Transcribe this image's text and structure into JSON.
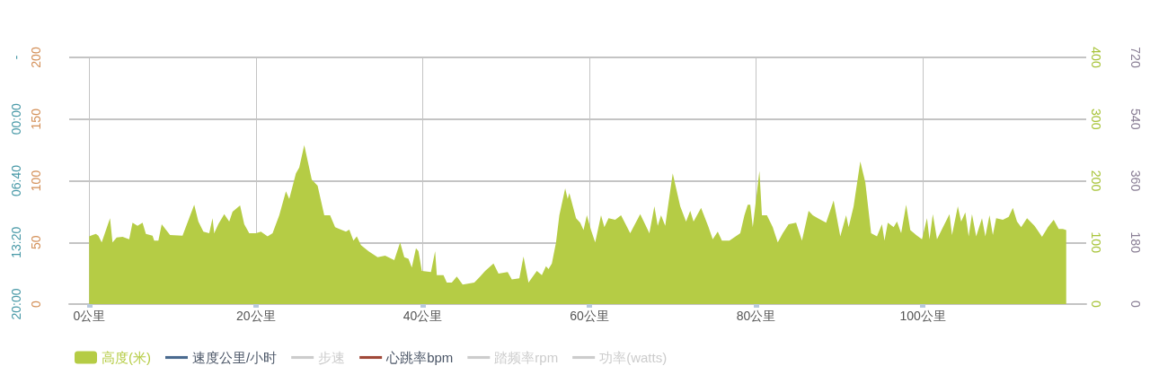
{
  "chart_data": {
    "type": "area",
    "x": [
      0,
      0.4,
      0.8,
      1.1,
      1.5,
      2.5,
      2.8,
      3.3,
      4.0,
      4.8,
      5.2,
      5.8,
      6.4,
      6.8,
      7.6,
      7.8,
      8.3,
      8.7,
      9.7,
      11.2,
      12.6,
      13.1,
      13.7,
      14.4,
      14.8,
      15.0,
      15.5,
      16.2,
      16.8,
      17.2,
      18.1,
      18.6,
      19.2,
      20,
      20.6,
      21.4,
      22.0,
      22.8,
      23.6,
      24.0,
      24.8,
      25.2,
      25.8,
      26.7,
      27.4,
      28.2,
      28.9,
      29.5,
      30.8,
      31.2,
      31.7,
      32.1,
      32.6,
      33.5,
      34.6,
      35.5,
      36.6,
      37.3,
      37.8,
      38.3,
      38.7,
      39.2,
      39.5,
      39.9,
      41.0,
      41.5,
      41.7,
      42.5,
      42.9,
      43.5,
      44.1,
      44.8,
      46.2,
      46.9,
      47.5,
      48.5,
      49.1,
      50.2,
      50.7,
      51.6,
      52.1,
      52.7,
      53.7,
      54.3,
      54.8,
      55.1,
      55.5,
      56.0,
      56.4,
      57.1,
      57.4,
      57.6,
      58.4,
      58.9,
      59.3,
      59.7,
      60.2,
      60.7,
      61.4,
      61.8,
      62.3,
      63.1,
      63.8,
      64.9,
      66.1,
      67.2,
      67.8,
      68.2,
      68.6,
      69.1,
      70.0,
      70.9,
      71.6,
      72.1,
      72.5,
      73.4,
      74.3,
      74.8,
      75.4,
      75.9,
      76.8,
      78.1,
      78.6,
      79.0,
      79.3,
      79.6,
      80.4,
      80.7,
      81.3,
      82.0,
      82.6,
      83.2,
      83.9,
      84.8,
      85.5,
      86.3,
      86.8,
      87.4,
      88.4,
      89.3,
      90.1,
      90.8,
      91.1,
      91.7,
      92.5,
      93.1,
      93.8,
      94.5,
      95.1,
      95.4,
      95.8,
      96.5,
      96.9,
      97.4,
      98.0,
      98.5,
      99.2,
      99.9,
      100.5,
      100.8,
      101.2,
      101.7,
      103.2,
      103.5,
      104.2,
      104.6,
      105.1,
      105.5,
      105.9,
      106.4,
      107.1,
      107.5,
      108.0,
      108.4,
      108.8,
      109.6,
      110.3,
      110.8,
      111.3,
      111.8,
      112.5,
      113.4,
      114.3,
      115.0,
      115.7,
      116.3,
      116.8,
      117.2
    ],
    "series": [
      {
        "name": "高度(米)",
        "color": "#b5cc45",
        "values": [
          55,
          56,
          57,
          55.5,
          50,
          69.6,
          50,
          54,
          54.5,
          52.6,
          66,
          63.5,
          66,
          57,
          55.5,
          51.4,
          51.4,
          64.7,
          56,
          55.5,
          80.5,
          67,
          58.7,
          57.5,
          69.6,
          57.5,
          65,
          73,
          67,
          75,
          80,
          64.7,
          57.5,
          57.5,
          58.7,
          55,
          57.5,
          72,
          91.4,
          85.3,
          106,
          110.8,
          129,
          101,
          96,
          72,
          72,
          62.3,
          58.7,
          60.4,
          51.4,
          55,
          47.8,
          43,
          38,
          39.3,
          35.6,
          50,
          38,
          36.8,
          29.6,
          45.3,
          43,
          27,
          26,
          43,
          23.5,
          23.5,
          17.5,
          17.5,
          22.3,
          15.8,
          17.5,
          22.3,
          27,
          33,
          24.7,
          26,
          20,
          21,
          38.5,
          17.5,
          27,
          23.5,
          30.8,
          28.4,
          33,
          50,
          72,
          93.8,
          85.3,
          90,
          69.6,
          66,
          60,
          72,
          60,
          50,
          72,
          62.3,
          69.6,
          68.4,
          72,
          57.5,
          73,
          57.5,
          79.3,
          63.5,
          72,
          63.5,
          106,
          79.3,
          67,
          75.6,
          67,
          78,
          62.3,
          52.6,
          58.7,
          51.4,
          51.4,
          57.5,
          72,
          80.5,
          80.5,
          62.3,
          108,
          72,
          72,
          62.3,
          50,
          57.5,
          64.7,
          66,
          51.4,
          75.6,
          72,
          69.6,
          66,
          84,
          55,
          72,
          62.3,
          79.3,
          115.6,
          98.7,
          57.5,
          55,
          64.7,
          51.4,
          66,
          62.3,
          67,
          57.5,
          80.5,
          60,
          56,
          52.6,
          69.6,
          52.6,
          73,
          52.6,
          73,
          56,
          79.3,
          67,
          74.4,
          55,
          73,
          55,
          69.6,
          55,
          72,
          56,
          69.6,
          68.4,
          70.8,
          78,
          67,
          62.3,
          69.6,
          63.5,
          54.5,
          62.3,
          68.4,
          61,
          61,
          60
        ]
      },
      {
        "name": "速度公里/小时",
        "type": "line",
        "color": "#4a6a8f",
        "values": [
          null,
          null,
          null,
          null,
          null,
          null,
          null,
          null,
          null,
          null,
          null,
          null,
          null,
          null,
          null,
          null,
          null,
          null,
          null,
          null,
          null,
          null,
          null,
          null,
          null,
          null,
          null,
          null,
          null,
          null,
          null,
          null,
          null,
          null,
          null,
          null,
          null,
          null,
          null,
          null,
          null,
          null,
          null,
          null,
          null,
          null,
          null,
          null,
          null,
          null,
          null,
          null,
          null,
          null,
          null,
          null,
          null,
          null,
          null,
          null,
          null,
          null,
          null,
          null,
          null,
          null,
          null,
          null,
          null,
          null,
          null,
          null,
          null,
          null,
          null,
          null,
          null,
          null,
          null,
          null,
          null,
          null,
          null,
          null,
          null,
          null,
          null,
          null,
          null,
          null,
          null,
          null,
          null,
          null,
          null,
          null,
          null,
          null,
          null,
          null,
          null,
          null,
          null,
          null,
          null,
          null,
          null,
          null,
          null,
          null,
          null,
          null,
          null,
          null,
          null,
          null,
          null,
          null,
          null,
          null,
          null,
          null,
          null,
          null,
          null,
          null,
          null,
          null,
          null,
          null,
          null,
          null,
          null,
          null,
          null,
          null,
          null,
          null,
          null,
          null,
          null,
          null,
          null,
          null,
          null,
          null,
          null,
          null,
          null,
          null,
          null,
          null,
          null,
          null,
          null,
          null,
          null,
          null,
          null,
          null,
          null,
          null,
          null,
          null,
          null,
          null,
          null,
          null,
          null,
          null,
          null,
          null,
          null,
          null,
          null,
          null,
          null,
          null,
          null,
          null,
          null,
          null,
          null,
          null,
          null,
          null,
          null,
          null
        ]
      },
      {
        "name": "步速",
        "type": "line",
        "color": "#cccccc",
        "values": [
          null,
          null,
          null,
          null,
          null,
          null,
          null,
          null,
          null,
          null,
          null,
          null,
          null,
          null,
          null,
          null,
          null,
          null,
          null,
          null,
          null,
          null,
          null,
          null,
          null,
          null,
          null,
          null,
          null,
          null,
          null,
          null,
          null,
          null,
          null,
          null,
          null,
          null,
          null,
          null,
          null,
          null,
          null,
          null,
          null,
          null,
          null,
          null,
          null,
          null,
          null,
          null,
          null,
          null,
          null,
          null,
          null,
          null,
          null,
          null,
          null,
          null,
          null,
          null,
          null,
          null,
          null,
          null,
          null,
          null,
          null,
          null,
          null,
          null,
          null,
          null,
          null,
          null,
          null,
          null,
          null,
          null,
          null,
          null,
          null,
          null,
          null,
          null,
          null,
          null,
          null,
          null,
          null,
          null,
          null,
          null,
          null,
          null,
          null,
          null,
          null,
          null,
          null,
          null,
          null,
          null,
          null,
          null,
          null,
          null,
          null,
          null,
          null,
          null,
          null,
          null,
          null,
          null,
          null,
          null,
          null,
          null,
          null,
          null,
          null,
          null,
          null,
          null,
          null,
          null,
          null,
          null,
          null,
          null,
          null,
          null,
          null,
          null,
          null,
          null,
          null,
          null,
          null,
          null,
          null,
          null,
          null,
          null,
          null,
          null,
          null,
          null,
          null,
          null,
          null,
          null,
          null,
          null,
          null,
          null,
          null,
          null,
          null,
          null,
          null,
          null,
          null,
          null,
          null,
          null,
          null,
          null,
          null,
          null,
          null,
          null,
          null,
          null,
          null,
          null,
          null,
          null,
          null,
          null,
          null,
          null,
          null,
          null
        ]
      },
      {
        "name": "心跳率bpm",
        "type": "line",
        "color": "#a04838",
        "values": [
          null,
          null,
          null,
          null,
          null,
          null,
          null,
          null,
          null,
          null,
          null,
          null,
          null,
          null,
          null,
          null,
          null,
          null,
          null,
          null,
          null,
          null,
          null,
          null,
          null,
          null,
          null,
          null,
          null,
          null,
          null,
          null,
          null,
          null,
          null,
          null,
          null,
          null,
          null,
          null,
          null,
          null,
          null,
          null,
          null,
          null,
          null,
          null,
          null,
          null,
          null,
          null,
          null,
          null,
          null,
          null,
          null,
          null,
          null,
          null,
          null,
          null,
          null,
          null,
          null,
          null,
          null,
          null,
          null,
          null,
          null,
          null,
          null,
          null,
          null,
          null,
          null,
          null,
          null,
          null,
          null,
          null,
          null,
          null,
          null,
          null,
          null,
          null,
          null,
          null,
          null,
          null,
          null,
          null,
          null,
          null,
          null,
          null,
          null,
          null,
          null,
          null,
          null,
          null,
          null,
          null,
          null,
          null,
          null,
          null,
          null,
          null,
          null,
          null,
          null,
          null,
          null,
          null,
          null,
          null,
          null,
          null,
          null,
          null,
          null,
          null,
          null,
          null,
          null,
          null,
          null,
          null,
          null,
          null,
          null,
          null,
          null,
          null,
          null,
          null,
          null,
          null,
          null,
          null,
          null,
          null,
          null,
          null,
          null,
          null,
          null,
          null,
          null,
          null,
          null,
          null,
          null,
          null,
          null,
          null,
          null,
          null,
          null,
          null,
          null,
          null,
          null,
          null,
          null,
          null,
          null,
          null,
          null,
          null,
          null,
          null,
          null,
          null,
          null,
          null,
          null,
          null,
          null,
          null,
          null,
          null,
          null,
          null
        ]
      },
      {
        "name": "踏频率rpm",
        "type": "line",
        "color": "#cccccc",
        "values": [
          null,
          null,
          null,
          null,
          null,
          null,
          null,
          null,
          null,
          null,
          null,
          null,
          null,
          null,
          null,
          null,
          null,
          null,
          null,
          null,
          null,
          null,
          null,
          null,
          null,
          null,
          null,
          null,
          null,
          null,
          null,
          null,
          null,
          null,
          null,
          null,
          null,
          null,
          null,
          null,
          null,
          null,
          null,
          null,
          null,
          null,
          null,
          null,
          null,
          null,
          null,
          null,
          null,
          null,
          null,
          null,
          null,
          null,
          null,
          null,
          null,
          null,
          null,
          null,
          null,
          null,
          null,
          null,
          null,
          null,
          null,
          null,
          null,
          null,
          null,
          null,
          null,
          null,
          null,
          null,
          null,
          null,
          null,
          null,
          null,
          null,
          null,
          null,
          null,
          null,
          null,
          null,
          null,
          null,
          null,
          null,
          null,
          null,
          null,
          null,
          null,
          null,
          null,
          null,
          null,
          null,
          null,
          null,
          null,
          null,
          null,
          null,
          null,
          null,
          null,
          null,
          null,
          null,
          null,
          null,
          null,
          null,
          null,
          null,
          null,
          null,
          null,
          null,
          null,
          null,
          null,
          null,
          null,
          null,
          null,
          null,
          null,
          null,
          null,
          null,
          null,
          null,
          null,
          null,
          null,
          null,
          null,
          null,
          null,
          null,
          null,
          null,
          null,
          null,
          null,
          null,
          null,
          null,
          null,
          null,
          null,
          null,
          null,
          null,
          null,
          null,
          null,
          null,
          null,
          null,
          null,
          null,
          null,
          null,
          null,
          null,
          null,
          null,
          null,
          null,
          null,
          null,
          null,
          null,
          null,
          null,
          null,
          null
        ]
      },
      {
        "name": "功率(watts)",
        "type": "line",
        "color": "#cccccc",
        "values": [
          null,
          null,
          null,
          null,
          null,
          null,
          null,
          null,
          null,
          null,
          null,
          null,
          null,
          null,
          null,
          null,
          null,
          null,
          null,
          null,
          null,
          null,
          null,
          null,
          null,
          null,
          null,
          null,
          null,
          null,
          null,
          null,
          null,
          null,
          null,
          null,
          null,
          null,
          null,
          null,
          null,
          null,
          null,
          null,
          null,
          null,
          null,
          null,
          null,
          null,
          null,
          null,
          null,
          null,
          null,
          null,
          null,
          null,
          null,
          null,
          null,
          null,
          null,
          null,
          null,
          null,
          null,
          null,
          null,
          null,
          null,
          null,
          null,
          null,
          null,
          null,
          null,
          null,
          null,
          null,
          null,
          null,
          null,
          null,
          null,
          null,
          null,
          null,
          null,
          null,
          null,
          null,
          null,
          null,
          null,
          null,
          null,
          null,
          null,
          null,
          null,
          null,
          null,
          null,
          null,
          null,
          null,
          null,
          null,
          null,
          null,
          null,
          null,
          null,
          null,
          null,
          null,
          null,
          null,
          null,
          null,
          null,
          null,
          null,
          null,
          null,
          null,
          null,
          null,
          null,
          null,
          null,
          null,
          null,
          null,
          null,
          null,
          null,
          null,
          null,
          null,
          null,
          null,
          null,
          null,
          null,
          null,
          null,
          null,
          null,
          null,
          null,
          null,
          null,
          null,
          null,
          null,
          null,
          null,
          null,
          null,
          null,
          null,
          null,
          null,
          null,
          null,
          null,
          null,
          null,
          null,
          null,
          null,
          null,
          null,
          null,
          null,
          null,
          null,
          null,
          null,
          null,
          null,
          null,
          null,
          null,
          null,
          null
        ]
      }
    ],
    "xlim": [
      -2.4,
      119.6
    ],
    "xticks": [
      {
        "value": 0,
        "label": "0公里"
      },
      {
        "value": 20,
        "label": "20公里"
      },
      {
        "value": 40,
        "label": "40公里"
      },
      {
        "value": 60,
        "label": "60公里"
      },
      {
        "value": 80,
        "label": "80公里"
      },
      {
        "value": 100,
        "label": "100公里"
      }
    ],
    "ylim": [
      0,
      200
    ],
    "yticks": [
      0,
      50,
      100,
      150,
      200
    ],
    "y2lim": [
      0,
      400
    ],
    "y2ticks": [
      0,
      100,
      200,
      300,
      400
    ],
    "y3lim": [
      0,
      720
    ],
    "y3ticks": [
      0,
      180,
      360,
      540,
      720
    ],
    "annotations": [
      "20:00",
      "13:20",
      "06:40",
      "00:00",
      "-"
    ],
    "grid": true,
    "legend": "bottom left"
  }
}
